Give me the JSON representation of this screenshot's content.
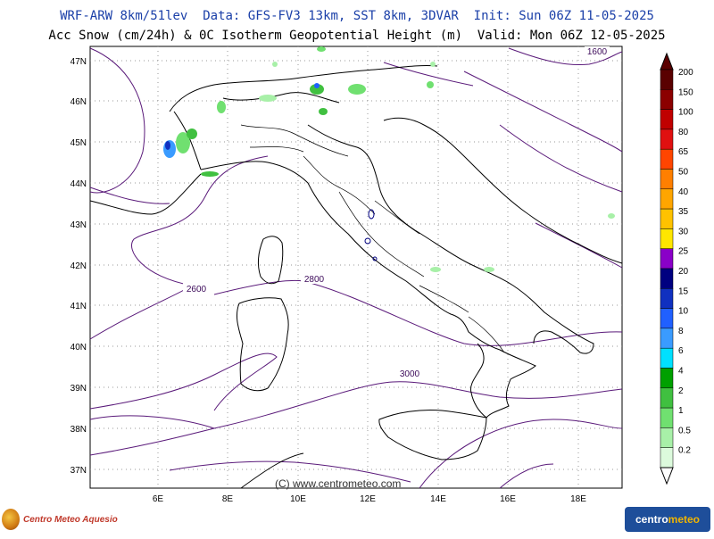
{
  "header": {
    "line1": "WRF-ARW 8km/51lev  Data: GFS-FV3 13km, SST 8km, 3DVAR  Init: Sun 06Z 11-05-2025",
    "line2": "Acc Snow (cm/24h) & 0C Isotherm Geopotential Height (m)  Valid: Mon 06Z 12-05-2025"
  },
  "map": {
    "lat_labels": [
      "47N",
      "46N",
      "45N",
      "44N",
      "43N",
      "42N",
      "41N",
      "40N",
      "39N",
      "38N",
      "37N"
    ],
    "lon_labels": [
      "6E",
      "8E",
      "10E",
      "12E",
      "14E",
      "16E",
      "18E"
    ],
    "isotherm_labels": [
      "1600",
      "2600",
      "2800",
      "3000"
    ],
    "copyright": "(C) www.centrometeo.com"
  },
  "colorbar": {
    "levels": [
      "200",
      "150",
      "100",
      "80",
      "65",
      "50",
      "40",
      "35",
      "30",
      "25",
      "20",
      "15",
      "10",
      "8",
      "6",
      "4",
      "2",
      "1",
      "0.5",
      "0.2"
    ],
    "colors": [
      "#5a0000",
      "#8b0000",
      "#c00000",
      "#e01010",
      "#ff4500",
      "#ff7f00",
      "#ffa500",
      "#ffc200",
      "#ffe600",
      "#8a00c8",
      "#000080",
      "#1030c0",
      "#2060ff",
      "#3a9bff",
      "#00e0ff",
      "#00a000",
      "#40c040",
      "#70e070",
      "#a8f0a8",
      "#dcfadc"
    ]
  },
  "logos": {
    "left_text": "Centro Meteo Aquesio",
    "right_text_main": "centro",
    "right_text_accent": "meteo"
  }
}
